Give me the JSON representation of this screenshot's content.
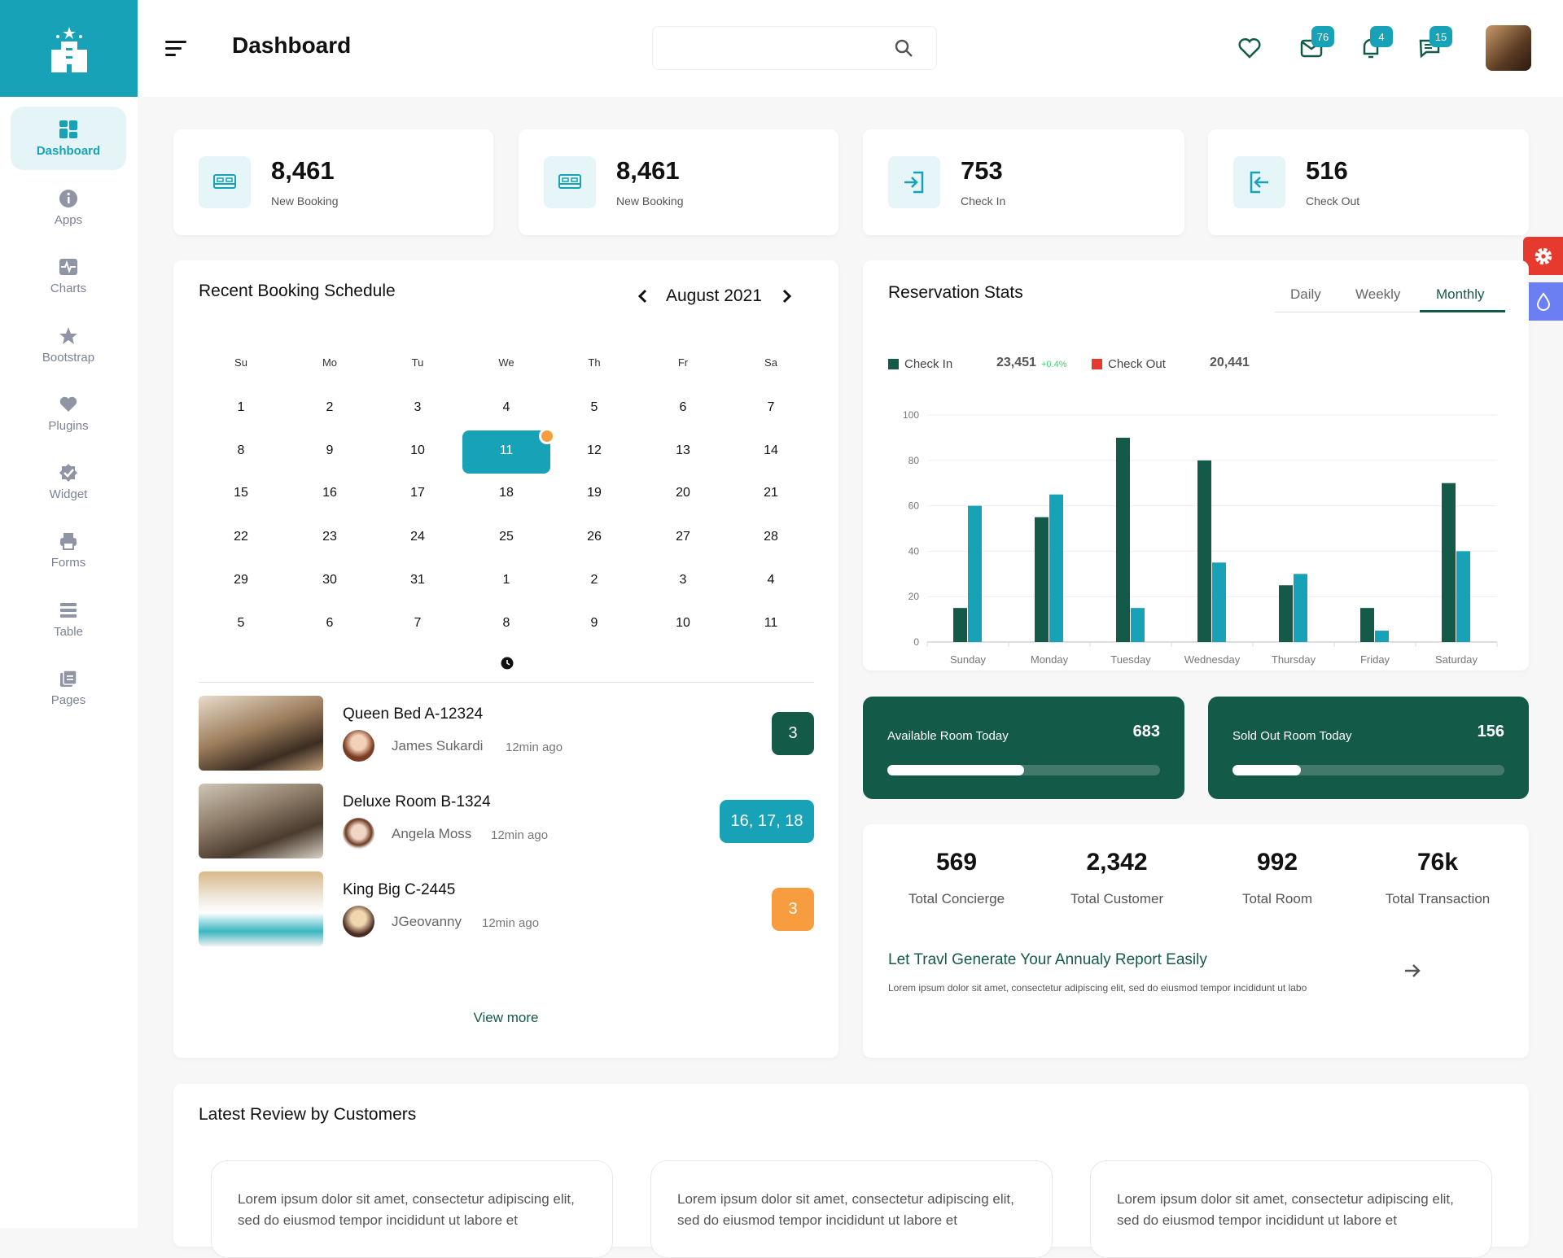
{
  "header": {
    "title": "Dashboard",
    "search_placeholder": "",
    "badges": {
      "mail": "76",
      "bell": "4",
      "chat": "15"
    }
  },
  "sidebar": {
    "items": [
      {
        "label": "Dashboard",
        "icon": "dashboard-icon",
        "active": true
      },
      {
        "label": "Apps",
        "icon": "info-icon"
      },
      {
        "label": "Charts",
        "icon": "chart-icon"
      },
      {
        "label": "Bootstrap",
        "icon": "star-icon"
      },
      {
        "label": "Plugins",
        "icon": "heart-icon"
      },
      {
        "label": "Widget",
        "icon": "badge-check-icon"
      },
      {
        "label": "Forms",
        "icon": "printer-icon"
      },
      {
        "label": "Table",
        "icon": "table-icon"
      },
      {
        "label": "Pages",
        "icon": "pages-icon"
      }
    ]
  },
  "stats": [
    {
      "value": "8,461",
      "label": "New Booking",
      "icon": "bed-icon"
    },
    {
      "value": "8,461",
      "label": "New Booking",
      "icon": "bed-icon"
    },
    {
      "value": "753",
      "label": "Check In",
      "icon": "login-icon"
    },
    {
      "value": "516",
      "label": "Check Out",
      "icon": "logout-icon"
    }
  ],
  "calendar": {
    "title": "Recent Booking Schedule",
    "month": "August 2021",
    "weekdays": [
      "Su",
      "Mo",
      "Tu",
      "We",
      "Th",
      "Fr",
      "Sa"
    ],
    "weeks": [
      [
        "1",
        "2",
        "3",
        "4",
        "5",
        "6",
        "7"
      ],
      [
        "8",
        "9",
        "10",
        "11",
        "12",
        "13",
        "14"
      ],
      [
        "15",
        "16",
        "17",
        "18",
        "19",
        "20",
        "21"
      ],
      [
        "22",
        "23",
        "24",
        "25",
        "26",
        "27",
        "28"
      ],
      [
        "29",
        "30",
        "31",
        "1",
        "2",
        "3",
        "4"
      ],
      [
        "5",
        "6",
        "7",
        "8",
        "9",
        "10",
        "11"
      ]
    ],
    "selected": "11"
  },
  "bookings": [
    {
      "room": "Queen Bed A-12324",
      "guest": "James Sukardi",
      "time": "12min ago",
      "badge": "3",
      "badge_color": "#145a48"
    },
    {
      "room": "Deluxe Room B-1324",
      "guest": "Angela Moss",
      "time": "12min ago",
      "badge": "16, 17, 18",
      "badge_color": "#17a2b8"
    },
    {
      "room": "King Big C-2445",
      "guest": "JGeovanny",
      "time": "12min ago",
      "badge": "3",
      "badge_color": "#f89d3f"
    }
  ],
  "view_more": "View more",
  "reservation": {
    "title": "Reservation Stats",
    "tabs": [
      "Daily",
      "Weekly",
      "Monthly"
    ],
    "active_tab": "Monthly",
    "legend": [
      {
        "label": "Check In",
        "value": "23,451",
        "change": "+0.4%",
        "color": "#145a48"
      },
      {
        "label": "Check Out",
        "value": "20,441",
        "color": "#e63a2e"
      }
    ]
  },
  "chart_data": {
    "type": "bar",
    "categories": [
      "Sunday",
      "Monday",
      "Tuesday",
      "Wednesday",
      "Thursday",
      "Friday",
      "Saturday"
    ],
    "series": [
      {
        "values": [
          15,
          55,
          90,
          80,
          25,
          15,
          70
        ],
        "color": "#145a48"
      },
      {
        "values": [
          60,
          65,
          15,
          35,
          30,
          5,
          40
        ],
        "color": "#17a2b8"
      }
    ],
    "ylim": [
      0,
      100
    ],
    "yticks": [
      "0",
      "20",
      "40",
      "60",
      "80",
      "100"
    ],
    "grid": true
  },
  "rooms": [
    {
      "label": "Available Room Today",
      "value": "683",
      "progress": 0.5
    },
    {
      "label": "Sold Out Room Today",
      "value": "156",
      "progress": 0.25
    }
  ],
  "totals": [
    {
      "value": "569",
      "label": "Total Concierge"
    },
    {
      "value": "2,342",
      "label": "Total Customer"
    },
    {
      "value": "992",
      "label": "Total Room"
    },
    {
      "value": "76k",
      "label": "Total Transaction"
    }
  ],
  "report": {
    "title": "Let Travl Generate Your Annualy Report Easily",
    "text": "Lorem ipsum dolor sit amet, consectetur adipiscing elit, sed do eiusmod tempor incididunt ut labo"
  },
  "reviews": {
    "title": "Latest Review by Customers",
    "items": [
      "Lorem ipsum dolor sit amet, consectetur adipiscing elit, sed do eiusmod tempor incididunt ut labore et",
      "Lorem ipsum dolor sit amet, consectetur adipiscing elit, sed do eiusmod tempor incididunt ut labore et",
      "Lorem ipsum dolor sit amet, consectetur adipiscing elit, sed do eiusmod tempor incididunt ut labore et"
    ]
  }
}
